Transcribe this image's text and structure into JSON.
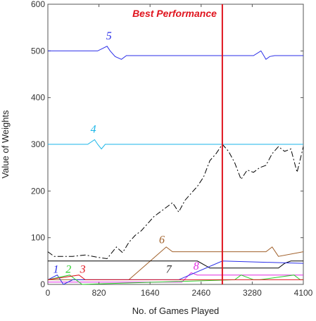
{
  "chart_data": {
    "type": "line",
    "title": "",
    "xlabel": "No. of Games Played",
    "ylabel": "Value of Weights",
    "xlim": [
      0,
      4100
    ],
    "ylim": [
      0,
      600
    ],
    "xticks": [
      0,
      820,
      1640,
      2460,
      3280,
      4100
    ],
    "yticks": [
      0,
      100,
      200,
      300,
      400,
      500,
      600
    ],
    "grid": false,
    "annotations": [
      {
        "text": "Best Performance",
        "x": 2800,
        "color": "#e0141e"
      }
    ],
    "series": [
      {
        "name": "5",
        "color": "#2a2ee8",
        "dash": "solid",
        "x": [
          0,
          800,
          950,
          1000,
          1080,
          1180,
          1260,
          2800,
          3300,
          3420,
          3500,
          3560,
          3640,
          4100
        ],
        "values": [
          500,
          500,
          510,
          500,
          488,
          482,
          490,
          490,
          490,
          500,
          482,
          488,
          490,
          490
        ]
      },
      {
        "name": "4",
        "color": "#1ab6e8",
        "dash": "solid",
        "x": [
          0,
          640,
          750,
          800,
          860,
          920,
          4100
        ],
        "values": [
          300,
          300,
          310,
          300,
          290,
          300,
          300
        ]
      },
      {
        "name": "",
        "color": "#000000",
        "dash": "dash-dot",
        "x": [
          0,
          100,
          400,
          600,
          800,
          950,
          1100,
          1200,
          1300,
          1400,
          1500,
          1600,
          1700,
          1800,
          1900,
          2000,
          2100,
          2200,
          2300,
          2400,
          2500,
          2600,
          2700,
          2800,
          2900,
          3000,
          3100,
          3200,
          3300,
          3400,
          3500,
          3600,
          3700,
          3800,
          3900,
          4000,
          4100
        ],
        "values": [
          70,
          60,
          60,
          63,
          58,
          55,
          80,
          68,
          90,
          105,
          115,
          130,
          145,
          155,
          165,
          175,
          155,
          180,
          195,
          210,
          230,
          265,
          280,
          300,
          285,
          260,
          225,
          245,
          240,
          250,
          255,
          280,
          295,
          285,
          290,
          240,
          295
        ]
      },
      {
        "name": "6",
        "color": "#a0602a",
        "dash": "solid",
        "x": [
          0,
          1300,
          1900,
          2000,
          3500,
          3600,
          3700,
          4100
        ],
        "values": [
          10,
          10,
          80,
          70,
          70,
          80,
          60,
          70
        ]
      },
      {
        "name": "7",
        "color": "#000000",
        "dash": "solid",
        "x": [
          0,
          2400,
          2600,
          3700,
          3800,
          3900,
          4100
        ],
        "values": [
          50,
          50,
          35,
          35,
          45,
          50,
          50
        ]
      },
      {
        "name": "8",
        "color": "#e02ae0",
        "dash": "solid",
        "x": [
          0,
          2150,
          2300,
          2400,
          4100
        ],
        "values": [
          5,
          5,
          25,
          20,
          20
        ]
      },
      {
        "name": "1",
        "color": "#2a2ee8",
        "dash": "solid",
        "x": [
          0,
          150,
          250,
          400,
          2100,
          2800,
          4100
        ],
        "values": [
          10,
          20,
          0,
          10,
          10,
          50,
          45
        ]
      },
      {
        "name": "2",
        "color": "#2ad02a",
        "dash": "solid",
        "x": [
          0,
          350,
          450,
          550,
          3000,
          3100,
          3300,
          3400,
          3950,
          4050,
          4100
        ],
        "values": [
          10,
          20,
          10,
          0,
          10,
          20,
          10,
          10,
          20,
          10,
          10
        ]
      },
      {
        "name": "3",
        "color": "#e0141e",
        "dash": "solid",
        "x": [
          0,
          500,
          600,
          4100
        ],
        "values": [
          10,
          20,
          10,
          10
        ]
      }
    ],
    "series_labels": [
      {
        "text": "5",
        "x": 980,
        "y": 525,
        "color": "#2a2ee8"
      },
      {
        "text": "4",
        "x": 730,
        "y": 325,
        "color": "#1ab6e8"
      },
      {
        "text": "6",
        "x": 1830,
        "y": 88,
        "color": "#a0602a"
      },
      {
        "text": "7",
        "x": 1940,
        "y": 25,
        "color": "#333333"
      },
      {
        "text": "8",
        "x": 2380,
        "y": 32,
        "color": "#e02ae0"
      },
      {
        "text": "1",
        "x": 130,
        "y": 25,
        "color": "#2a2ee8"
      },
      {
        "text": "2",
        "x": 330,
        "y": 25,
        "color": "#2ad02a"
      },
      {
        "text": "3",
        "x": 560,
        "y": 25,
        "color": "#e0141e"
      }
    ]
  }
}
